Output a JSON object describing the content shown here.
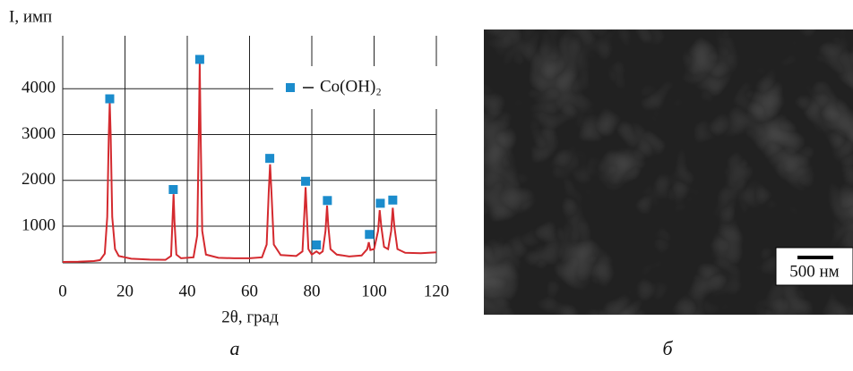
{
  "chart_data": {
    "type": "line",
    "y_label": "I, имп",
    "x_label": "2θ, град",
    "xlim": [
      0,
      120
    ],
    "xticks": [
      0,
      20,
      40,
      60,
      80,
      100,
      120
    ],
    "ylim": [
      200,
      5000
    ],
    "yticks": [
      1000,
      2000,
      3000,
      4000
    ],
    "grid": true,
    "legend": "upper right",
    "series": [
      {
        "type": "line",
        "color": "#d42a2f",
        "x": [
          0,
          5,
          10,
          12,
          13.5,
          14.3,
          14.8,
          15.1,
          15.4,
          15.9,
          16.8,
          18,
          22,
          28,
          33,
          34.8,
          35.3,
          35.6,
          35.9,
          36.5,
          38,
          42,
          43.2,
          43.7,
          44,
          44.3,
          44.8,
          46,
          50,
          55,
          60,
          64,
          65.5,
          66.2,
          66.6,
          67,
          67.8,
          70,
          75,
          77,
          77.7,
          78,
          78.3,
          78.9,
          80,
          81.5,
          82.5,
          83.5,
          84.4,
          84.9,
          85.3,
          86,
          88,
          92,
          96,
          97.8,
          98.3,
          98.8,
          100,
          101.3,
          101.8,
          102.3,
          103.2,
          104.5,
          105.5,
          106,
          106.5,
          107.5,
          110,
          115,
          120
        ],
        "values": [
          220,
          225,
          240,
          260,
          400,
          1200,
          3000,
          3700,
          3000,
          1200,
          500,
          350,
          290,
          270,
          265,
          350,
          1200,
          1700,
          1100,
          380,
          300,
          320,
          800,
          3000,
          4550,
          3000,
          900,
          380,
          310,
          300,
          300,
          320,
          600,
          1800,
          2350,
          1800,
          600,
          370,
          350,
          450,
          1400,
          1850,
          1400,
          500,
          380,
          450,
          400,
          450,
          900,
          1450,
          1000,
          500,
          380,
          340,
          360,
          500,
          650,
          480,
          500,
          900,
          1350,
          1000,
          550,
          500,
          900,
          1400,
          1000,
          500,
          420,
          410,
          430
        ]
      },
      {
        "type": "scatter",
        "name": "Co(OH)₂",
        "color": "#1b8ccc",
        "x": [
          15.1,
          35.5,
          44,
          66.5,
          78,
          81.5,
          85,
          98.5,
          102,
          106
        ],
        "values": [
          3780,
          1800,
          4640,
          2480,
          1980,
          590,
          1560,
          820,
          1500,
          1570
        ]
      }
    ]
  },
  "image": {
    "scale_bar": "500 нм"
  },
  "panel_labels": [
    "а",
    "б"
  ]
}
